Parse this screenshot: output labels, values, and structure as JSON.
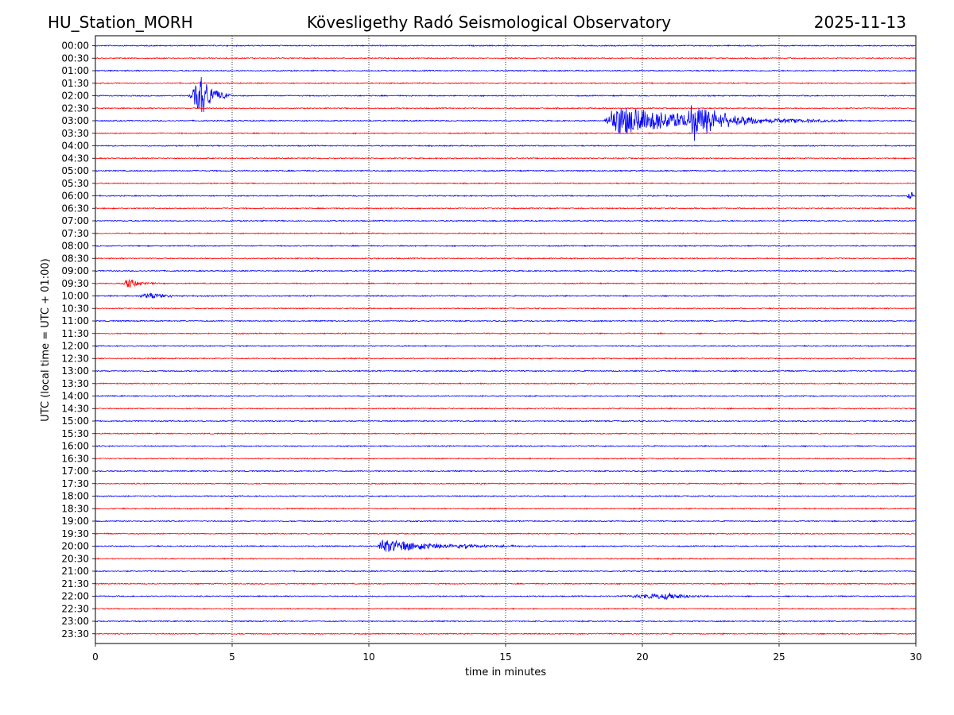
{
  "header": {
    "station": "HU_Station_MORH",
    "observatory": "Kövesligethy Radó Seismological Observatory",
    "date": "2025-11-13"
  },
  "chart_data": {
    "type": "line",
    "title": "Kövesligethy Radó Seismological Observatory",
    "xlabel": "time in minutes",
    "ylabel": "UTC (local time = UTC + 01:00)",
    "xlim": [
      0,
      30
    ],
    "xticks": [
      0,
      5,
      10,
      15,
      20,
      25,
      30
    ],
    "xtick_labels": [
      "0",
      "5",
      "10",
      "15",
      "20",
      "25",
      "30"
    ],
    "grid": "vertical dotted at 5, 10, 15, 20, 25",
    "trace_colors": [
      "#0000ff",
      "#ff0000"
    ],
    "traces": [
      {
        "label": "00:00",
        "color": "#0000ff",
        "events": []
      },
      {
        "label": "00:30",
        "color": "#ff0000",
        "events": []
      },
      {
        "label": "01:00",
        "color": "#0000ff",
        "events": []
      },
      {
        "label": "01:30",
        "color": "#ff0000",
        "events": []
      },
      {
        "label": "02:00",
        "color": "#0000ff",
        "events": [
          {
            "start": 3.4,
            "end": 5.0,
            "peak": 3.9,
            "amplitude": 1.6
          }
        ]
      },
      {
        "label": "02:30",
        "color": "#ff0000",
        "events": []
      },
      {
        "label": "03:00",
        "color": "#0000ff",
        "events": [
          {
            "start": 18.6,
            "end": 27.5,
            "peak": 19.0,
            "amplitude": 1.2
          },
          {
            "start": 21.5,
            "end": 24.5,
            "peak": 21.9,
            "amplitude": 1.2
          }
        ]
      },
      {
        "label": "03:30",
        "color": "#ff0000",
        "events": []
      },
      {
        "label": "04:00",
        "color": "#0000ff",
        "events": []
      },
      {
        "label": "04:30",
        "color": "#ff0000",
        "events": []
      },
      {
        "label": "05:00",
        "color": "#0000ff",
        "events": []
      },
      {
        "label": "05:30",
        "color": "#ff0000",
        "events": []
      },
      {
        "label": "06:00",
        "color": "#0000ff",
        "events": [
          {
            "start": 29.6,
            "end": 30.0,
            "peak": 29.85,
            "amplitude": 0.4
          }
        ]
      },
      {
        "label": "06:30",
        "color": "#ff0000",
        "events": []
      },
      {
        "label": "07:00",
        "color": "#0000ff",
        "events": []
      },
      {
        "label": "07:30",
        "color": "#ff0000",
        "events": []
      },
      {
        "label": "08:00",
        "color": "#0000ff",
        "events": []
      },
      {
        "label": "08:30",
        "color": "#ff0000",
        "events": []
      },
      {
        "label": "09:00",
        "color": "#0000ff",
        "events": []
      },
      {
        "label": "09:30",
        "color": "#ff0000",
        "events": [
          {
            "start": 1.0,
            "end": 2.4,
            "peak": 1.2,
            "amplitude": 0.4
          }
        ]
      },
      {
        "label": "10:00",
        "color": "#0000ff",
        "events": [
          {
            "start": 1.5,
            "end": 3.8,
            "peak": 2.0,
            "amplitude": 0.25
          }
        ]
      },
      {
        "label": "10:30",
        "color": "#ff0000",
        "events": []
      },
      {
        "label": "11:00",
        "color": "#0000ff",
        "events": []
      },
      {
        "label": "11:30",
        "color": "#ff0000",
        "events": []
      },
      {
        "label": "12:00",
        "color": "#0000ff",
        "events": []
      },
      {
        "label": "12:30",
        "color": "#ff0000",
        "events": []
      },
      {
        "label": "13:00",
        "color": "#0000ff",
        "events": []
      },
      {
        "label": "13:30",
        "color": "#ff0000",
        "events": []
      },
      {
        "label": "14:00",
        "color": "#0000ff",
        "events": []
      },
      {
        "label": "14:30",
        "color": "#ff0000",
        "events": []
      },
      {
        "label": "15:00",
        "color": "#0000ff",
        "events": []
      },
      {
        "label": "15:30",
        "color": "#ff0000",
        "events": []
      },
      {
        "label": "16:00",
        "color": "#0000ff",
        "events": []
      },
      {
        "label": "16:30",
        "color": "#ff0000",
        "events": []
      },
      {
        "label": "17:00",
        "color": "#0000ff",
        "events": []
      },
      {
        "label": "17:30",
        "color": "#ff0000",
        "events": []
      },
      {
        "label": "18:00",
        "color": "#0000ff",
        "events": []
      },
      {
        "label": "18:30",
        "color": "#ff0000",
        "events": []
      },
      {
        "label": "19:00",
        "color": "#0000ff",
        "events": []
      },
      {
        "label": "19:30",
        "color": "#ff0000",
        "events": []
      },
      {
        "label": "20:00",
        "color": "#0000ff",
        "events": [
          {
            "start": 10.3,
            "end": 16.2,
            "peak": 10.45,
            "amplitude": 0.55
          },
          {
            "start": 13.2,
            "end": 14.5,
            "peak": 13.7,
            "amplitude": 0.2
          }
        ]
      },
      {
        "label": "20:30",
        "color": "#ff0000",
        "events": []
      },
      {
        "label": "21:00",
        "color": "#0000ff",
        "events": []
      },
      {
        "label": "21:30",
        "color": "#ff0000",
        "events": []
      },
      {
        "label": "22:00",
        "color": "#0000ff",
        "events": [
          {
            "start": 18.8,
            "end": 23.0,
            "peak": 21.0,
            "amplitude": 0.25
          }
        ]
      },
      {
        "label": "22:30",
        "color": "#ff0000",
        "events": []
      },
      {
        "label": "23:00",
        "color": "#0000ff",
        "events": []
      },
      {
        "label": "23:30",
        "color": "#ff0000",
        "events": []
      }
    ]
  }
}
